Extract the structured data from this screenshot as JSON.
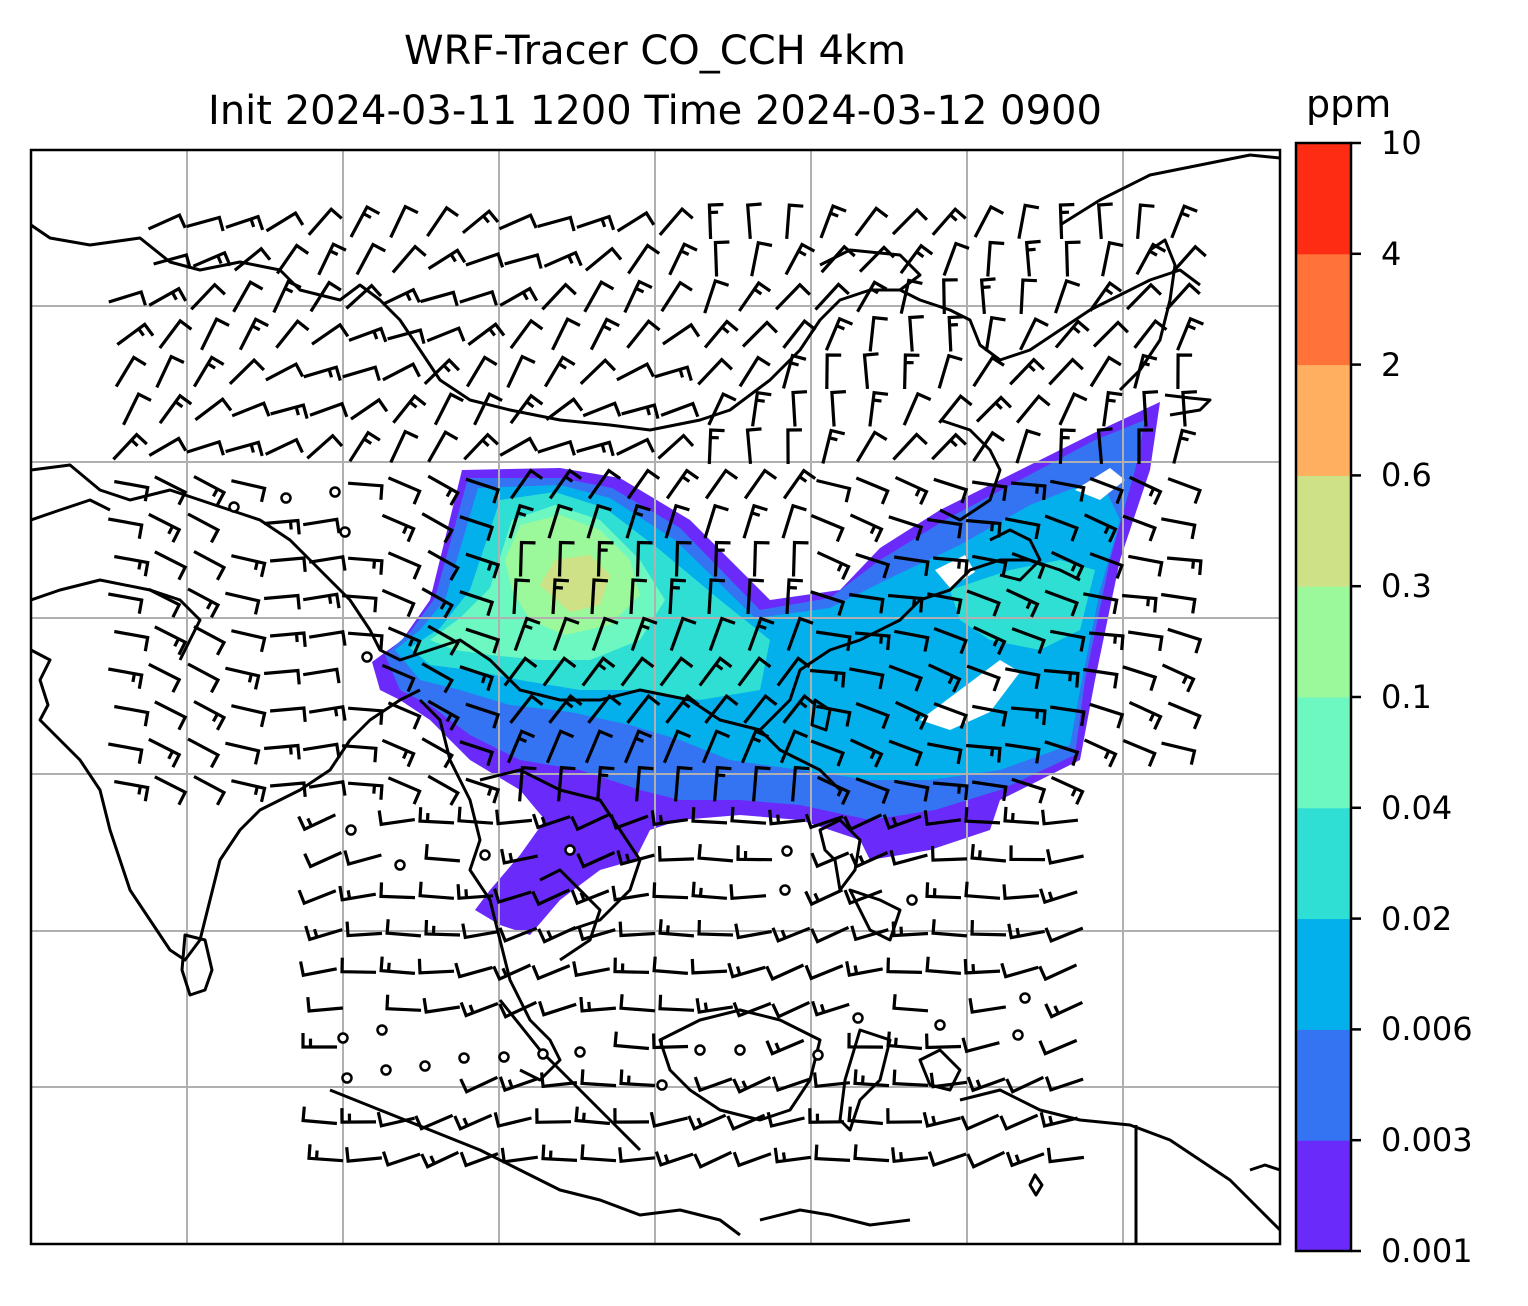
{
  "title": {
    "line1": "WRF-Tracer CO_CCH 4km",
    "line2": "Init 2024-03-11 1200 Time 2024-03-12 0900"
  },
  "colorbar": {
    "unit": "ppm",
    "ticks": [
      "0.001",
      "0.003",
      "0.006",
      "0.02",
      "0.04",
      "0.1",
      "0.3",
      "0.6",
      "2",
      "4",
      "10"
    ],
    "colors": [
      "#6a2bfa",
      "#3474f2",
      "#03b0ec",
      "#2fdfd4",
      "#6cf8c0",
      "#9bf89b",
      "#cfe186",
      "#ffaf5f",
      "#ff723a",
      "#ff2c14"
    ]
  },
  "map": {
    "gridlines": true,
    "wind_barbs": true,
    "plume_levels_shown": [
      "0.001",
      "0.003",
      "0.006",
      "0.02",
      "0.04",
      "0.1",
      "0.3"
    ]
  }
}
